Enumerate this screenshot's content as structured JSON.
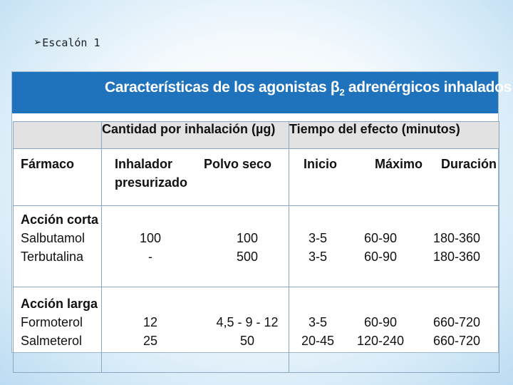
{
  "slide": {
    "arrow": "➢",
    "title": "Escalón 1"
  },
  "table": {
    "caption_pre": "Características de los agonistas β",
    "caption_sub": "2",
    "caption_post": " adrenérgicos inhalados",
    "group_headers": {
      "quantity": "Cantidad por inhalación (µg)",
      "time": "Tiempo del efecto (minutos)"
    },
    "columns": {
      "drug": "Fármaco",
      "inhaler_1": "Inhalador",
      "inhaler_2": "presurizado",
      "powder": "Polvo seco",
      "onset": "Inicio",
      "max": "Máximo",
      "duration": "Duración"
    },
    "sections": [
      {
        "title": "Acción corta",
        "drugs": [
          {
            "name": "Salbutamol",
            "inhaler": "100",
            "powder": "100",
            "onset": "3-5",
            "max": "60-90",
            "duration": "180-360"
          },
          {
            "name": "Terbutalina",
            "inhaler": "-",
            "powder": "500",
            "onset": "3-5",
            "max": "60-90",
            "duration": "180-360"
          }
        ]
      },
      {
        "title": "Acción larga",
        "drugs": [
          {
            "name": "Formoterol",
            "inhaler": "12",
            "powder": "4,5 - 9 - 12",
            "onset": "3-5",
            "max": "60-90",
            "duration": "660-720"
          },
          {
            "name": "Salmeterol",
            "inhaler": "25",
            "powder": "50",
            "onset": "20-45",
            "max": "120-240",
            "duration": "660-720"
          }
        ]
      }
    ]
  }
}
